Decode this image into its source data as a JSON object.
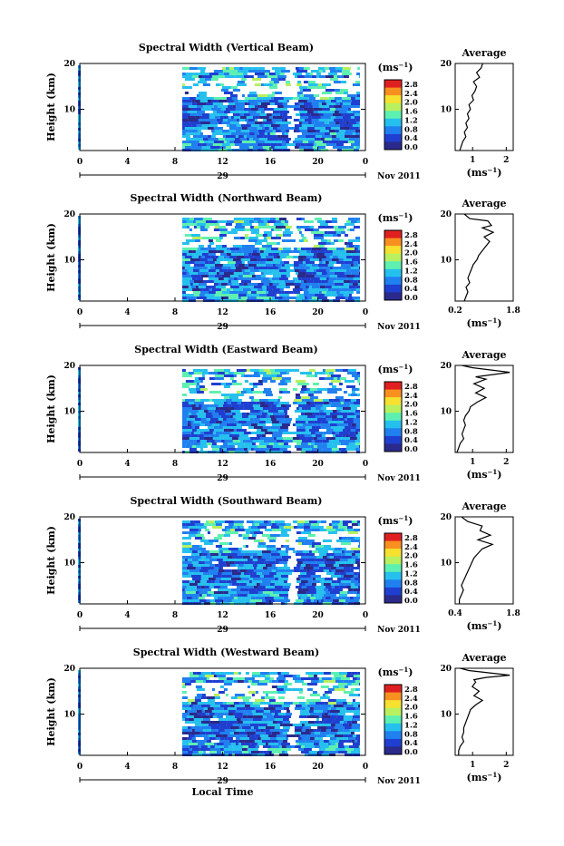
{
  "figure": {
    "xlabel": "Local Time",
    "date_label": "Nov 2011",
    "colorbar_unit": "(ms",
    "colorbar_unit_sup": "−1",
    "colorbar_unit_close": ")",
    "avg_unit": "(ms",
    "avg_unit_sup": "−1",
    "avg_unit_close": ")",
    "ylabel": "Height (km)",
    "avg_title": "Average"
  },
  "chart_data": [
    {
      "type": "heatmap",
      "title": "Spectral Width (Vertical Beam)",
      "ylabel": "Height (km)",
      "xlabel": "",
      "x_ticks": [
        "0",
        "4",
        "8",
        "12",
        "16",
        "20",
        "0"
      ],
      "y_ticks": [
        "20",
        "10"
      ],
      "day_label": "29",
      "xlim": [
        0,
        24
      ],
      "ylim": [
        1,
        20
      ],
      "data_start_hour": 8.6,
      "gap_hour": 17.6,
      "colorbar_ticks": [
        "2.8",
        "2.4",
        "2.0",
        "1.6",
        "1.2",
        "0.8",
        "0.4",
        "0.0"
      ],
      "colorbar_range": [
        0,
        3.0
      ],
      "colormap": [
        "#2a2a8c",
        "#1f3fd0",
        "#2080f0",
        "#25c0ee",
        "#5ef0b0",
        "#b8f060",
        "#f6e030",
        "#f89020",
        "#e02020"
      ],
      "average": {
        "title": "Average",
        "xticks": [
          "1",
          "2"
        ],
        "xlim": [
          0.4,
          2.3
        ],
        "ylim": [
          1,
          20
        ],
        "yticks": [
          "20",
          "10"
        ],
        "profile": [
          [
            1.3,
            20
          ],
          [
            1.25,
            19
          ],
          [
            1.1,
            18
          ],
          [
            1.2,
            17
          ],
          [
            1.0,
            16
          ],
          [
            1.1,
            15
          ],
          [
            1.05,
            14
          ],
          [
            0.95,
            13
          ],
          [
            1.0,
            12
          ],
          [
            0.85,
            11
          ],
          [
            0.9,
            10
          ],
          [
            0.8,
            9
          ],
          [
            0.85,
            8
          ],
          [
            0.75,
            7
          ],
          [
            0.8,
            6
          ],
          [
            0.7,
            5
          ],
          [
            0.75,
            4
          ],
          [
            0.65,
            3
          ],
          [
            0.6,
            2
          ],
          [
            0.55,
            1
          ]
        ]
      }
    },
    {
      "type": "heatmap",
      "title": "Spectral Width (Northward Beam)",
      "ylabel": "Height (km)",
      "xlabel": "",
      "x_ticks": [
        "0",
        "4",
        "8",
        "12",
        "16",
        "20",
        "0"
      ],
      "y_ticks": [
        "20",
        "10"
      ],
      "day_label": "29",
      "xlim": [
        0,
        24
      ],
      "ylim": [
        1,
        20
      ],
      "data_start_hour": 8.6,
      "gap_hour": 17.6,
      "colorbar_ticks": [
        "2.8",
        "2.4",
        "2.0",
        "1.6",
        "1.2",
        "0.8",
        "0.4",
        "0.0"
      ],
      "colorbar_range": [
        0,
        3.0
      ],
      "colormap": [
        "#2a2a8c",
        "#1f3fd0",
        "#2080f0",
        "#25c0ee",
        "#5ef0b0",
        "#b8f060",
        "#f6e030",
        "#f89020",
        "#e02020"
      ],
      "average": {
        "title": "Average",
        "xticks": [
          "0.2",
          "1.8"
        ],
        "xlim": [
          0.2,
          1.8
        ],
        "ylim": [
          1,
          20
        ],
        "yticks": [
          "20",
          "10"
        ],
        "profile": [
          [
            0.45,
            20
          ],
          [
            0.6,
            19
          ],
          [
            1.1,
            18.5
          ],
          [
            1.2,
            17.5
          ],
          [
            0.95,
            17
          ],
          [
            1.25,
            16
          ],
          [
            1.0,
            15
          ],
          [
            1.15,
            14
          ],
          [
            1.05,
            13
          ],
          [
            0.95,
            12
          ],
          [
            0.85,
            11
          ],
          [
            0.8,
            10
          ],
          [
            0.7,
            9
          ],
          [
            0.65,
            8
          ],
          [
            0.6,
            7
          ],
          [
            0.55,
            6
          ],
          [
            0.6,
            5
          ],
          [
            0.5,
            4
          ],
          [
            0.55,
            3
          ],
          [
            0.5,
            2
          ],
          [
            0.45,
            1
          ]
        ]
      }
    },
    {
      "type": "heatmap",
      "title": "Spectral Width (Eastward Beam)",
      "ylabel": "Height (km)",
      "xlabel": "",
      "x_ticks": [
        "0",
        "4",
        "8",
        "12",
        "16",
        "20",
        "0"
      ],
      "y_ticks": [
        "20",
        "10"
      ],
      "day_label": "29",
      "xlim": [
        0,
        24
      ],
      "ylim": [
        1,
        20
      ],
      "data_start_hour": 8.6,
      "gap_hour": 17.6,
      "colorbar_ticks": [
        "2.8",
        "2.4",
        "2.0",
        "1.6",
        "1.2",
        "0.8",
        "0.4",
        "0.0"
      ],
      "colorbar_range": [
        0,
        3.0
      ],
      "colormap": [
        "#2a2a8c",
        "#1f3fd0",
        "#2080f0",
        "#25c0ee",
        "#5ef0b0",
        "#b8f060",
        "#f6e030",
        "#f89020",
        "#e02020"
      ],
      "average": {
        "title": "Average",
        "xticks": [
          "1",
          "2"
        ],
        "xlim": [
          0.4,
          2.1
        ],
        "ylim": [
          1,
          20
        ],
        "yticks": [
          "20",
          "10"
        ],
        "profile": [
          [
            0.6,
            20
          ],
          [
            0.9,
            19.5
          ],
          [
            2.0,
            18.5
          ],
          [
            1.5,
            18
          ],
          [
            1.0,
            17.5
          ],
          [
            1.3,
            17
          ],
          [
            0.95,
            16
          ],
          [
            1.25,
            15
          ],
          [
            1.0,
            14
          ],
          [
            1.3,
            13
          ],
          [
            1.05,
            12
          ],
          [
            0.85,
            11
          ],
          [
            0.8,
            10
          ],
          [
            0.7,
            9
          ],
          [
            0.65,
            8
          ],
          [
            0.7,
            7
          ],
          [
            0.65,
            6
          ],
          [
            0.6,
            5
          ],
          [
            0.65,
            4
          ],
          [
            0.55,
            3
          ],
          [
            0.5,
            2
          ],
          [
            0.45,
            1
          ]
        ]
      }
    },
    {
      "type": "heatmap",
      "title": "Spectral Width (Southward Beam)",
      "ylabel": "Height (km)",
      "xlabel": "",
      "x_ticks": [
        "0",
        "4",
        "8",
        "12",
        "16",
        "20",
        "0"
      ],
      "y_ticks": [
        "20",
        "10"
      ],
      "day_label": "29",
      "xlim": [
        0,
        24
      ],
      "ylim": [
        1,
        20
      ],
      "data_start_hour": 8.6,
      "gap_hour": 17.6,
      "colorbar_ticks": [
        "2.8",
        "2.4",
        "2.0",
        "1.6",
        "1.2",
        "0.8",
        "0.4",
        "0.0"
      ],
      "colorbar_range": [
        0,
        3.0
      ],
      "colormap": [
        "#2a2a8c",
        "#1f3fd0",
        "#2080f0",
        "#25c0ee",
        "#5ef0b0",
        "#b8f060",
        "#f6e030",
        "#f89020",
        "#e02020"
      ],
      "average": {
        "title": "Average",
        "xticks": [
          "0.4",
          "1.8"
        ],
        "xlim": [
          0.4,
          1.8
        ],
        "ylim": [
          1,
          20
        ],
        "yticks": [
          "20",
          "10"
        ],
        "profile": [
          [
            0.55,
            20
          ],
          [
            0.7,
            19
          ],
          [
            1.05,
            18
          ],
          [
            1.0,
            17
          ],
          [
            1.25,
            16
          ],
          [
            0.95,
            15
          ],
          [
            1.3,
            14
          ],
          [
            1.05,
            13
          ],
          [
            0.95,
            12
          ],
          [
            0.85,
            11
          ],
          [
            0.8,
            10
          ],
          [
            0.75,
            9
          ],
          [
            0.7,
            8
          ],
          [
            0.65,
            7
          ],
          [
            0.6,
            6
          ],
          [
            0.55,
            5
          ],
          [
            0.6,
            4
          ],
          [
            0.55,
            3
          ],
          [
            0.5,
            2
          ],
          [
            0.5,
            1
          ]
        ]
      }
    },
    {
      "type": "heatmap",
      "title": "Spectral Width (Westward Beam)",
      "ylabel": "Height (km)",
      "xlabel": "Local Time",
      "x_ticks": [
        "0",
        "4",
        "8",
        "12",
        "16",
        "20",
        "0"
      ],
      "y_ticks": [
        "20",
        "10"
      ],
      "day_label": "29",
      "xlim": [
        0,
        24
      ],
      "ylim": [
        1,
        20
      ],
      "data_start_hour": 8.6,
      "gap_hour": 17.6,
      "colorbar_ticks": [
        "2.8",
        "2.4",
        "2.0",
        "1.6",
        "1.2",
        "0.8",
        "0.4",
        "0.0"
      ],
      "colorbar_range": [
        0,
        3.0
      ],
      "colormap": [
        "#2a2a8c",
        "#1f3fd0",
        "#2080f0",
        "#25c0ee",
        "#5ef0b0",
        "#b8f060",
        "#f6e030",
        "#f89020",
        "#e02020"
      ],
      "average": {
        "title": "Average",
        "xticks": [
          "1",
          "2"
        ],
        "xlim": [
          0.4,
          2.1
        ],
        "ylim": [
          1,
          20
        ],
        "yticks": [
          "20",
          "10"
        ],
        "profile": [
          [
            0.55,
            20
          ],
          [
            0.8,
            19.5
          ],
          [
            2.0,
            18.5
          ],
          [
            1.3,
            18
          ],
          [
            0.95,
            17.5
          ],
          [
            1.0,
            17
          ],
          [
            0.9,
            16
          ],
          [
            1.1,
            15
          ],
          [
            0.95,
            14
          ],
          [
            1.2,
            13
          ],
          [
            1.0,
            12
          ],
          [
            0.85,
            11
          ],
          [
            0.8,
            10
          ],
          [
            0.75,
            9
          ],
          [
            0.7,
            8
          ],
          [
            0.65,
            7
          ],
          [
            0.65,
            6
          ],
          [
            0.6,
            5
          ],
          [
            0.65,
            4
          ],
          [
            0.55,
            3
          ],
          [
            0.5,
            2
          ],
          [
            0.5,
            1
          ]
        ]
      }
    }
  ]
}
